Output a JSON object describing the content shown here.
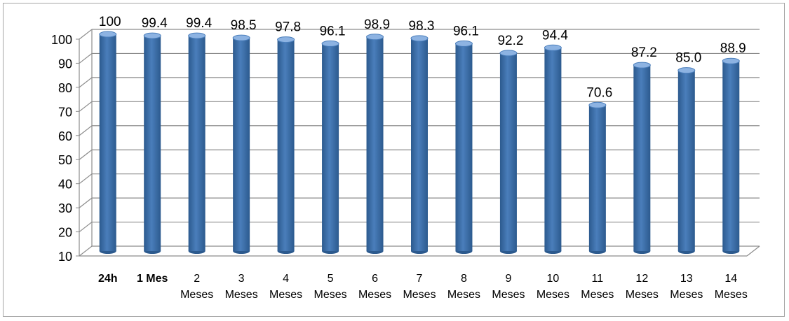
{
  "chart_data": {
    "type": "bar",
    "categories": [
      [
        "24h"
      ],
      [
        "1 Mes"
      ],
      [
        "2",
        "Meses"
      ],
      [
        "3",
        "Meses"
      ],
      [
        "4",
        "Meses"
      ],
      [
        "5",
        "Meses"
      ],
      [
        "6",
        "Meses"
      ],
      [
        "7",
        "Meses"
      ],
      [
        "8",
        "Meses"
      ],
      [
        "9",
        "Meses"
      ],
      [
        "10",
        "Meses"
      ],
      [
        "11",
        "Meses"
      ],
      [
        "12",
        "Meses"
      ],
      [
        "13",
        "Meses"
      ],
      [
        "14",
        "Meses"
      ]
    ],
    "values": [
      100,
      99.4,
      99.4,
      98.5,
      97.8,
      96.1,
      98.9,
      98.3,
      96.1,
      92.2,
      94.4,
      70.6,
      87.2,
      85.0,
      88.9
    ],
    "data_labels": [
      "100",
      "99.4",
      "99.4",
      "98.5",
      "97.8",
      "96.1",
      "98.9",
      "98.3",
      "96.1",
      "92.2",
      "94.4",
      "70.6",
      "87.2",
      "85.0",
      "88.9"
    ],
    "yticks": [
      "10",
      "20",
      "30",
      "40",
      "50",
      "60",
      "70",
      "80",
      "90",
      "100"
    ],
    "ylim": [
      10,
      100
    ],
    "title": "",
    "xlabel": "",
    "ylabel": "",
    "grid": true,
    "legend": "none",
    "style": "3d-cylinder",
    "colors": {
      "bar_fill": "#4a7ebb",
      "bar_dark": "#2c5a8e",
      "bar_light": "#8db3e2",
      "gridline": "#8c8c8c",
      "text": "#000000"
    }
  }
}
